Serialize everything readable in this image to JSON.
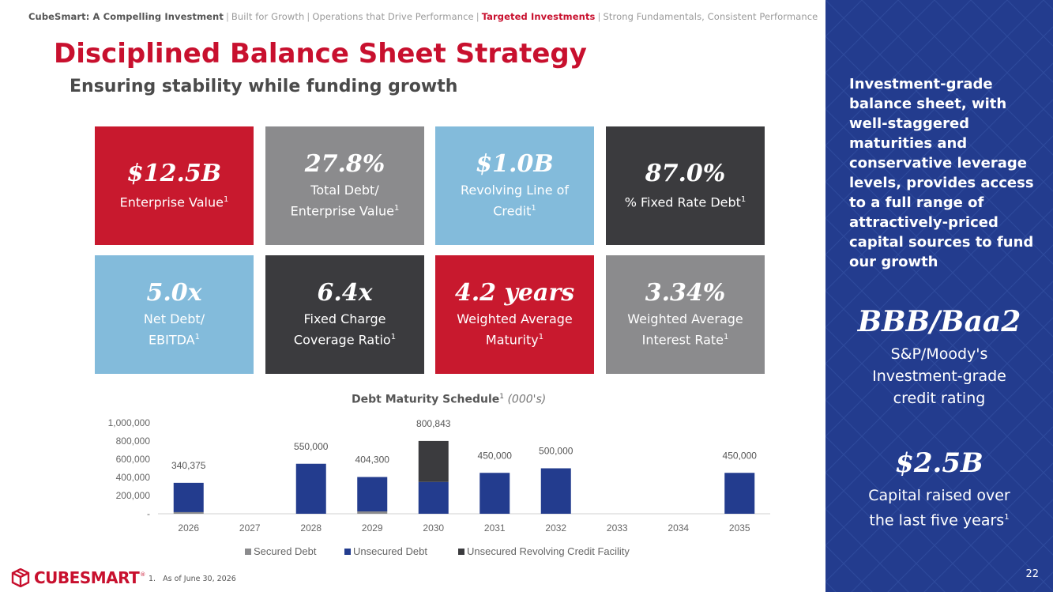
{
  "breadcrumb": {
    "items": [
      "CubeSmart: A Compelling Investment",
      "Built for Growth",
      "Operations that Drive Performance",
      "Targeted Investments",
      "Strong Fundamentals, Consistent Performance"
    ],
    "separator": "|"
  },
  "header": {
    "title": "Disciplined Balance Sheet Strategy",
    "subtitle": "Ensuring stability while funding growth"
  },
  "tiles": [
    {
      "value": "$12.5B",
      "label": "Enterprise Value",
      "footnote": "1",
      "color": "#c8192e"
    },
    {
      "value": "27.8%",
      "label": "Total Debt/ Enterprise Value",
      "footnote": "1",
      "color": "#8b8b8d"
    },
    {
      "value": "$1.0B",
      "label": "Revolving Line of Credit",
      "footnote": "1",
      "color": "#83bbdb"
    },
    {
      "value": "87.0%",
      "label": "% Fixed Rate Debt",
      "footnote": "1",
      "color": "#3b3b3e"
    },
    {
      "value": "5.0x",
      "label": "Net Debt/ EBITDA",
      "footnote": "1",
      "color": "#83bbdb"
    },
    {
      "value": "6.4x",
      "label": "Fixed Charge Coverage Ratio",
      "footnote": "1",
      "color": "#3b3b3e"
    },
    {
      "value": "4.2 years",
      "label": "Weighted Average Maturity",
      "footnote": "1",
      "color": "#c8192e"
    },
    {
      "value": "3.34%",
      "label": "Weighted Average Interest Rate",
      "footnote": "1",
      "color": "#8b8b8d"
    }
  ],
  "chart_title": {
    "main": "Debt Maturity Schedule",
    "footnote": "1",
    "unit": "(000's)"
  },
  "chart_data": {
    "type": "bar",
    "stacked": true,
    "categories": [
      "2026",
      "2027",
      "2028",
      "2029",
      "2030",
      "2031",
      "2032",
      "2033",
      "2034",
      "2035"
    ],
    "series": [
      {
        "name": "Secured Debt",
        "color": "#8b8b8d",
        "values": [
          18000,
          0,
          0,
          26000,
          0,
          0,
          0,
          0,
          0,
          0
        ]
      },
      {
        "name": "Unsecured Debt",
        "color": "#233c8e",
        "values": [
          322375,
          0,
          550000,
          378300,
          350000,
          450000,
          500000,
          0,
          0,
          450000
        ]
      },
      {
        "name": "Unsecured Revolving Credit Facility",
        "color": "#3b3b3e",
        "values": [
          0,
          0,
          0,
          0,
          450843,
          0,
          0,
          0,
          0,
          0
        ]
      }
    ],
    "totals": [
      "340,375",
      "",
      "550,000",
      "404,300",
      "800,843",
      "450,000",
      "500,000",
      "",
      "",
      "450,000"
    ],
    "yticks": [
      "-",
      "200,000",
      "400,000",
      "600,000",
      "800,000",
      "1,000,000"
    ],
    "ylim": [
      0,
      1000000
    ],
    "grid": false,
    "legend_position": "bottom"
  },
  "footnote": {
    "number": "1.",
    "text": "As of June 30, 2026"
  },
  "logo": {
    "text": "CUBESMART",
    "mark": "®"
  },
  "side_panel": {
    "text": "Investment-grade balance sheet, with well-staggered maturities and conservative leverage levels, provides access to a full range of attractively-priced capital sources to fund our growth",
    "rating_value": "BBB/Baa2",
    "rating_label_1": "S&P/Moody's",
    "rating_label_2": "Investment-grade",
    "rating_label_3": "credit rating",
    "raised_value": "$2.5B",
    "raised_label_1": "Capital raised over",
    "raised_label_2": "the last five years",
    "raised_footnote": "1",
    "background": "#233c8e"
  },
  "page_number": "22"
}
